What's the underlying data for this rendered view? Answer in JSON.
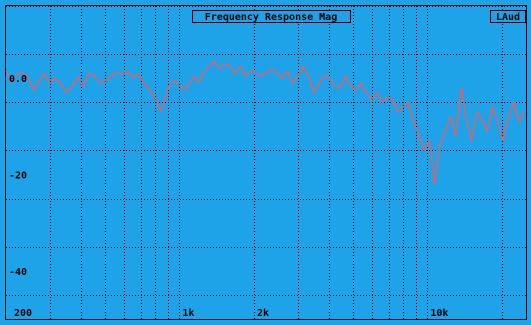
{
  "chart_data": {
    "type": "line",
    "title": "Frequency Response Mag",
    "channel_label": "LAud",
    "x_scale": "log",
    "xlim": [
      200,
      25000
    ],
    "ylim": [
      -50,
      15
    ],
    "x_ticks": [
      {
        "value": 200,
        "label": "200"
      },
      {
        "value": 1000,
        "label": "1k"
      },
      {
        "value": 2000,
        "label": "2k"
      },
      {
        "value": 10000,
        "label": "10k"
      }
    ],
    "y_ticks": [
      {
        "value": 0,
        "label": "0.0"
      },
      {
        "value": -20,
        "label": "-20"
      },
      {
        "value": -40,
        "label": "-40"
      }
    ],
    "grid": true,
    "series": [
      {
        "color": "#ff5555",
        "x": [
          200,
          210,
          220,
          232,
          245,
          258,
          272,
          285,
          300,
          315,
          330,
          350,
          370,
          390,
          410,
          430,
          455,
          480,
          505,
          530,
          560,
          590,
          620,
          650,
          685,
          720,
          760,
          800,
          840,
          880,
          920,
          960,
          1000,
          1050,
          1100,
          1150,
          1200,
          1260,
          1320,
          1380,
          1450,
          1520,
          1600,
          1680,
          1760,
          1850,
          1940,
          2040,
          2140,
          2250,
          2360,
          2480,
          2600,
          2730,
          2870,
          3010,
          3160,
          3320,
          3490,
          3660,
          3840,
          4030,
          4230,
          4440,
          4670,
          4900,
          5150,
          5400,
          5670,
          5950,
          6250,
          6560,
          6890,
          7240,
          7600,
          7980,
          8380,
          8800,
          9240,
          9700,
          10200,
          10700,
          11200,
          11800,
          12400,
          13000,
          13700,
          14400,
          15100,
          15800,
          16600,
          17400,
          18300,
          19200,
          20200,
          21200,
          22300,
          23400,
          24500
        ],
        "y": [
          1.5,
          -1.0,
          0.5,
          1.2,
          0.2,
          -2.5,
          -0.5,
          1.0,
          -1.2,
          0.0,
          -0.8,
          -3.0,
          -1.5,
          0.3,
          -1.8,
          1.0,
          0.5,
          -1.0,
          -0.5,
          0.5,
          1.2,
          0.8,
          1.5,
          0.2,
          0.8,
          -1.0,
          -2.5,
          -4.0,
          -7.0,
          -3.5,
          -1.0,
          -0.5,
          -1.5,
          -2.5,
          -1.0,
          0.5,
          -0.8,
          1.5,
          2.5,
          3.5,
          2.0,
          3.0,
          2.5,
          1.0,
          2.5,
          0.5,
          1.5,
          1.0,
          0.5,
          1.0,
          2.0,
          1.0,
          0.0,
          1.5,
          -1.0,
          0.5,
          2.5,
          0.5,
          -3.0,
          -1.0,
          0.5,
          0.0,
          -1.5,
          -2.0,
          0.5,
          -1.5,
          -2.5,
          -1.0,
          -3.0,
          -4.5,
          -3.0,
          -5.0,
          -4.0,
          -4.5,
          -7.0,
          -6.0,
          -5.0,
          -9.0,
          -12.0,
          -15.0,
          -13.0,
          -22.0,
          -14.0,
          -11.0,
          -8.0,
          -12.0,
          -2.0,
          -9.0,
          -13.0,
          -7.0,
          -8.5,
          -11.0,
          -6.0,
          -9.0,
          -13.0,
          -8.0,
          -5.0,
          -9.0,
          -7.0
        ]
      }
    ]
  }
}
